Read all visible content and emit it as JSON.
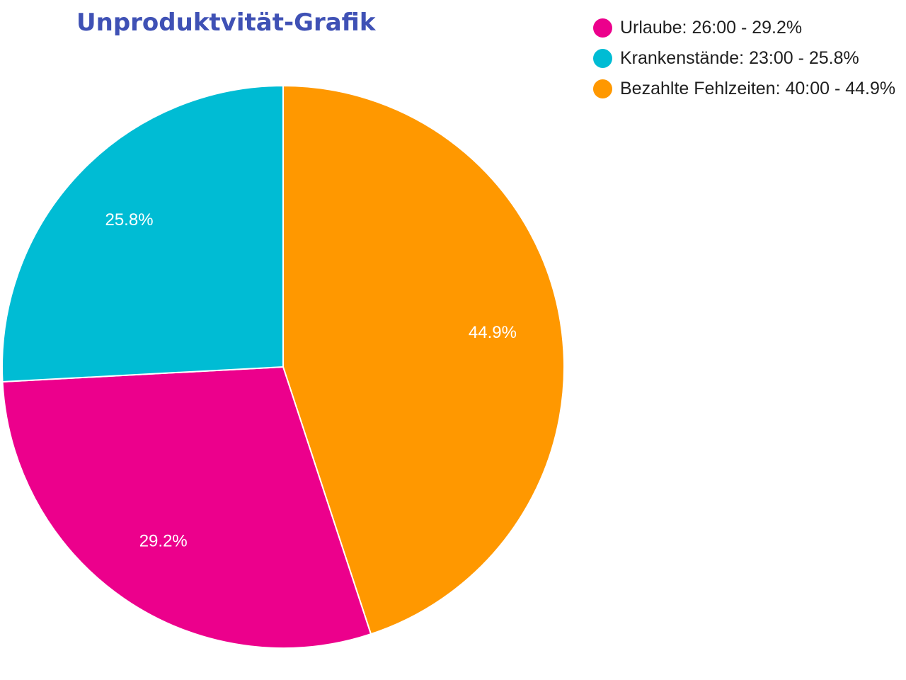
{
  "chart_data": {
    "type": "pie",
    "title": "Unproduktvität-Grafik",
    "slices": [
      {
        "name": "Bezahlte Fehlzeiten",
        "value": 40,
        "value_label": "40:00",
        "percent": 44.9,
        "percent_label": "44.9%",
        "legend_label": "Bezahlte Fehlzeiten: 40:00 - 44.9%",
        "color": "#ff9800"
      },
      {
        "name": "Urlaube",
        "value": 26,
        "value_label": "26:00",
        "percent": 29.2,
        "percent_label": "29.2%",
        "legend_label": "Urlaube: 26:00 - 29.2%",
        "color": "#ec008c"
      },
      {
        "name": "Krankenstände",
        "value": 23,
        "value_label": "23:00",
        "percent": 25.8,
        "percent_label": "25.8%",
        "legend_label": "Krankenstände: 23:00 - 25.8%",
        "color": "#00bcd4"
      }
    ],
    "legend_order": [
      "Urlaube",
      "Krankenstände",
      "Bezahlte Fehlzeiten"
    ],
    "legend_position": "top-right",
    "title_color": "#3f51b5"
  }
}
